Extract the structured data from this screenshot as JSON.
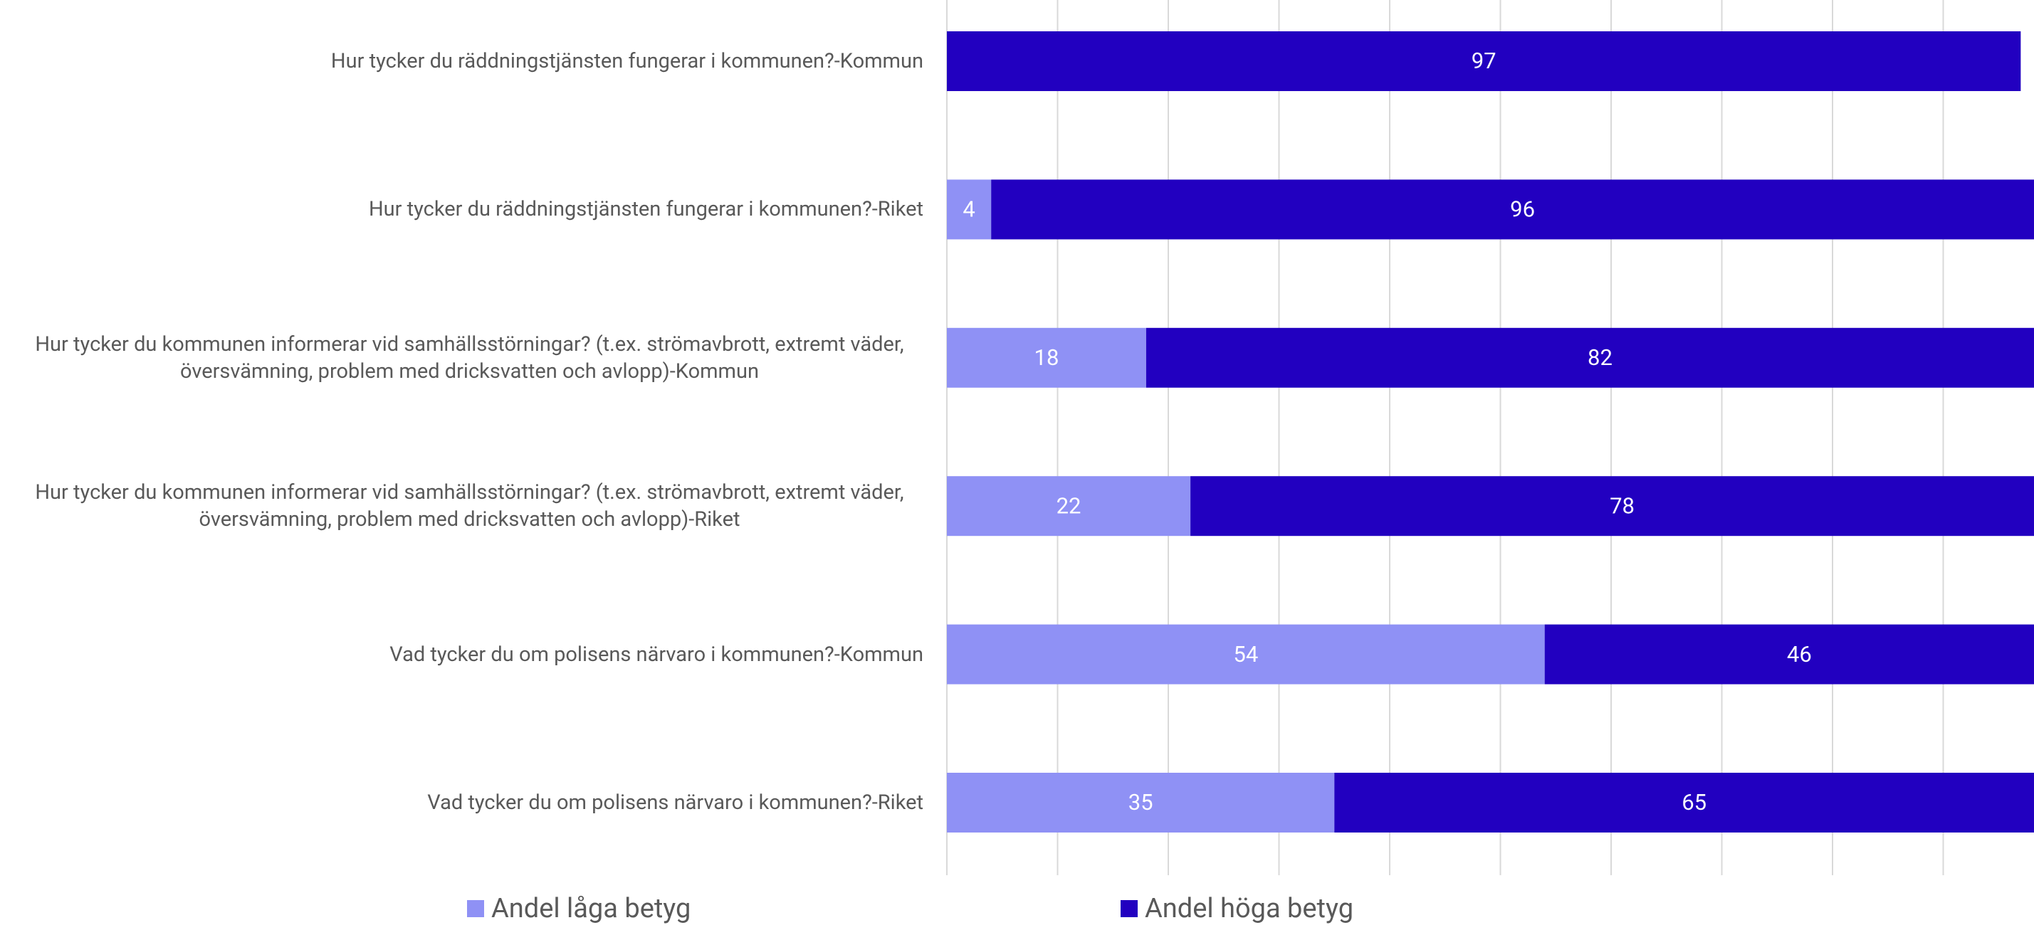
{
  "chart_data": {
    "type": "stacked-barh",
    "categories": [
      "Hur tycker du räddningstjänsten fungerar i kommunen?-Kommun",
      "Hur tycker du räddningstjänsten fungerar i kommunen?-Riket",
      "Hur tycker du kommunen informerar vid samhällsstörningar? (t.ex. strömavbrott,  extremt väder, översvämning, problem med dricksvatten och avlopp)-Kommun",
      "Hur tycker du kommunen informerar vid samhällsstörningar? (t.ex. strömavbrott,  extremt väder, översvämning, problem med dricksvatten och avlopp)-Riket",
      "Vad tycker du om polisens närvaro i kommunen?-Kommun",
      "Vad tycker du om polisens närvaro i kommunen?-Riket"
    ],
    "series": [
      {
        "name": "Andel låga betyg",
        "color": "#8f91f5",
        "values": [
          null,
          4,
          18,
          22,
          54,
          35
        ]
      },
      {
        "name": "Andel höga betyg",
        "color": "#2200c0",
        "values": [
          97,
          96,
          82,
          78,
          46,
          65
        ]
      }
    ],
    "xlim": [
      0,
      100
    ],
    "xticks": [
      0,
      10,
      20,
      30,
      40,
      50,
      60,
      70,
      80,
      90,
      100
    ],
    "grid": true
  }
}
